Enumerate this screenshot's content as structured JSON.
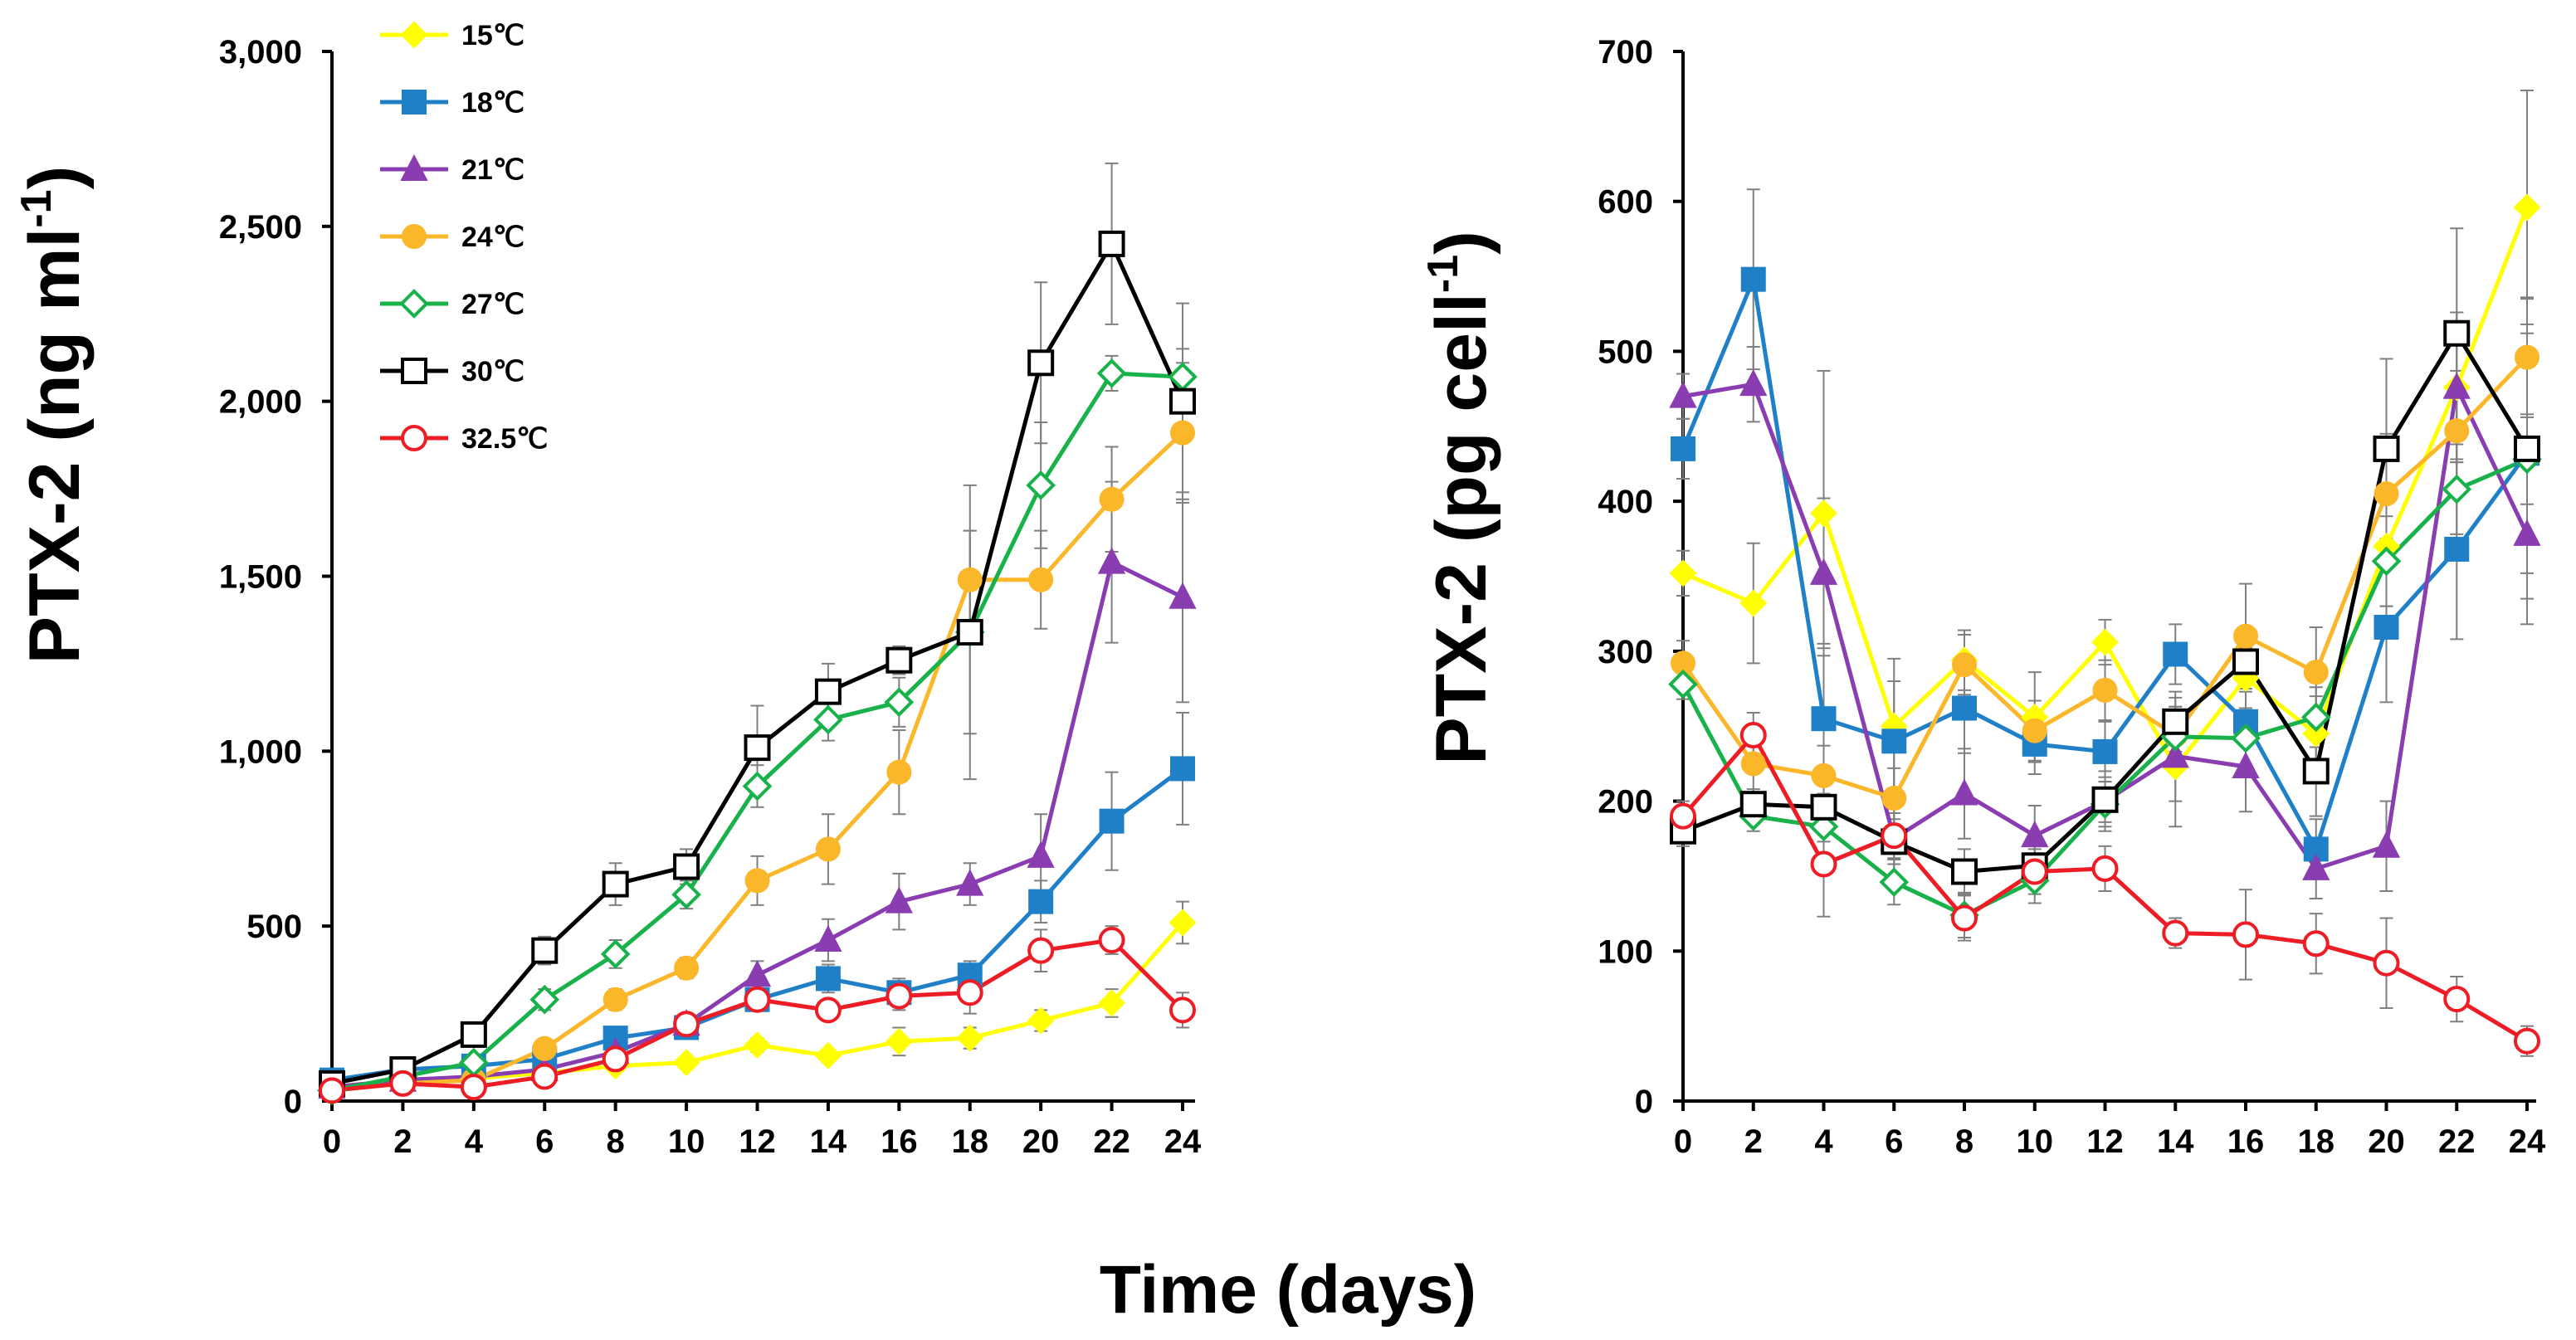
{
  "shared_xlabel": "Time (days)",
  "legend": [
    {
      "label": "15℃",
      "color": "#FFFF00",
      "marker": "diamond-filled"
    },
    {
      "label": "18℃",
      "color": "#1F80C8",
      "marker": "square-filled"
    },
    {
      "label": "21℃",
      "color": "#8A3DB0",
      "marker": "triangle-filled"
    },
    {
      "label": "24℃",
      "color": "#FBB72A",
      "marker": "circle-filled"
    },
    {
      "label": "27℃",
      "color": "#18B14A",
      "marker": "diamond-open"
    },
    {
      "label": "30℃",
      "color": "#000000",
      "marker": "square-open"
    },
    {
      "label": "32.5℃",
      "color": "#EE1C25",
      "marker": "circle-open"
    }
  ],
  "chart_data": [
    {
      "type": "line",
      "ylabel": "PTX-2 (ng ml⁻¹)",
      "xlabel": "Time (days)",
      "x": [
        0,
        2,
        4,
        6,
        8,
        10,
        12,
        14,
        16,
        18,
        20,
        22,
        24
      ],
      "xlim": [
        0,
        24
      ],
      "ylim": [
        0,
        3000
      ],
      "yticks": [
        0,
        500,
        1000,
        1500,
        2000,
        2500,
        3000
      ],
      "ytick_labels": [
        "0",
        "500",
        "1,000",
        "1,500",
        "2,000",
        "2,500",
        "3,000"
      ],
      "xtick_labels": [
        "0",
        "2",
        "4",
        "6",
        "8",
        "10",
        "12",
        "14",
        "16",
        "18",
        "20",
        "22",
        "24"
      ],
      "series": [
        {
          "name": "15℃",
          "values": [
            40,
            60,
            65,
            80,
            100,
            110,
            160,
            130,
            170,
            180,
            230,
            280,
            510
          ],
          "errors": [
            10,
            10,
            10,
            10,
            15,
            15,
            20,
            15,
            40,
            30,
            30,
            40,
            60
          ]
        },
        {
          "name": "18℃",
          "values": [
            60,
            90,
            100,
            120,
            180,
            210,
            290,
            350,
            310,
            360,
            570,
            800,
            950
          ],
          "errors": [
            10,
            10,
            10,
            15,
            20,
            20,
            30,
            40,
            40,
            40,
            60,
            140,
            160
          ]
        },
        {
          "name": "21℃",
          "values": [
            40,
            60,
            70,
            90,
            140,
            220,
            360,
            460,
            570,
            620,
            700,
            1540,
            1440
          ],
          "errors": [
            10,
            10,
            10,
            15,
            20,
            20,
            40,
            60,
            80,
            60,
            120,
            230,
            300
          ]
        },
        {
          "name": "24℃",
          "values": [
            30,
            50,
            60,
            150,
            290,
            380,
            630,
            720,
            940,
            1490,
            1490,
            1720,
            1910
          ],
          "errors": [
            10,
            10,
            10,
            20,
            30,
            30,
            70,
            100,
            120,
            140,
            140,
            150,
            200
          ]
        },
        {
          "name": "27℃",
          "values": [
            30,
            70,
            110,
            290,
            420,
            590,
            900,
            1090,
            1140,
            1340,
            1760,
            2080,
            2070
          ],
          "errors": [
            10,
            10,
            15,
            30,
            40,
            40,
            60,
            60,
            70,
            420,
            180,
            50,
            80
          ]
        },
        {
          "name": "30℃",
          "values": [
            50,
            90,
            190,
            430,
            620,
            670,
            1010,
            1170,
            1260,
            1340,
            2110,
            2450,
            2000
          ],
          "errors": [
            10,
            10,
            20,
            40,
            60,
            50,
            120,
            80,
            40,
            290,
            230,
            230,
            280
          ]
        },
        {
          "name": "32.5℃",
          "values": [
            30,
            50,
            40,
            70,
            120,
            220,
            290,
            260,
            300,
            310,
            430,
            460,
            260
          ],
          "errors": [
            10,
            10,
            10,
            15,
            20,
            20,
            30,
            30,
            40,
            60,
            60,
            40,
            50
          ]
        }
      ]
    },
    {
      "type": "line",
      "ylabel": "PTX-2 (pg cell⁻¹)",
      "xlabel": "Time (days)",
      "x": [
        0,
        2,
        4,
        6,
        8,
        10,
        12,
        14,
        16,
        18,
        20,
        22,
        24
      ],
      "xlim": [
        0,
        24
      ],
      "ylim": [
        0,
        700
      ],
      "yticks": [
        0,
        100,
        200,
        300,
        400,
        500,
        600,
        700
      ],
      "ytick_labels": [
        "0",
        "100",
        "200",
        "300",
        "400",
        "500",
        "600",
        "700"
      ],
      "xtick_labels": [
        "0",
        "2",
        "4",
        "6",
        "8",
        "10",
        "12",
        "14",
        "16",
        "18",
        "20",
        "22",
        "24"
      ],
      "series": [
        {
          "name": "15℃",
          "values": [
            352,
            332,
            392,
            250,
            294,
            256,
            306,
            223,
            282,
            245,
            370,
            476,
            596
          ],
          "errors": [
            15,
            40,
            95,
            45,
            20,
            30,
            15,
            40,
            20,
            25,
            40,
            50,
            78
          ]
        },
        {
          "name": "18℃",
          "values": [
            435,
            548,
            255,
            240,
            262,
            238,
            233,
            298,
            253,
            168,
            316,
            368,
            432
          ],
          "errors": [
            20,
            60,
            50,
            40,
            30,
            20,
            20,
            20,
            30,
            20,
            50,
            60,
            80
          ]
        },
        {
          "name": "21℃",
          "values": [
            470,
            478,
            352,
            175,
            205,
            177,
            200,
            230,
            223,
            155,
            170,
            476,
            378
          ],
          "errors": [
            15,
            25,
            50,
            30,
            30,
            20,
            20,
            30,
            30,
            20,
            30,
            50,
            60
          ]
        },
        {
          "name": "24℃",
          "values": [
            292,
            225,
            217,
            202,
            291,
            247,
            274,
            244,
            310,
            286,
            405,
            447,
            496
          ],
          "errors": [
            15,
            20,
            20,
            20,
            20,
            20,
            20,
            25,
            35,
            30,
            40,
            40,
            40
          ]
        },
        {
          "name": "27℃",
          "values": [
            278,
            190,
            183,
            146,
            124,
            147,
            198,
            243,
            242,
            256,
            360,
            408,
            428
          ],
          "errors": [
            10,
            10,
            10,
            15,
            15,
            15,
            15,
            20,
            20,
            20,
            30,
            30,
            30
          ]
        },
        {
          "name": "30℃",
          "values": [
            180,
            198,
            196,
            173,
            153,
            157,
            201,
            253,
            293,
            220,
            435,
            512,
            435
          ],
          "errors": [
            10,
            10,
            15,
            15,
            15,
            15,
            15,
            20,
            20,
            30,
            60,
            70,
            100
          ]
        },
        {
          "name": "32.5℃",
          "values": [
            190,
            244,
            158,
            177,
            122,
            153,
            155,
            112,
            111,
            105,
            92,
            68,
            40
          ],
          "errors": [
            10,
            15,
            35,
            15,
            15,
            15,
            15,
            10,
            30,
            20,
            30,
            15,
            10
          ]
        }
      ]
    }
  ]
}
